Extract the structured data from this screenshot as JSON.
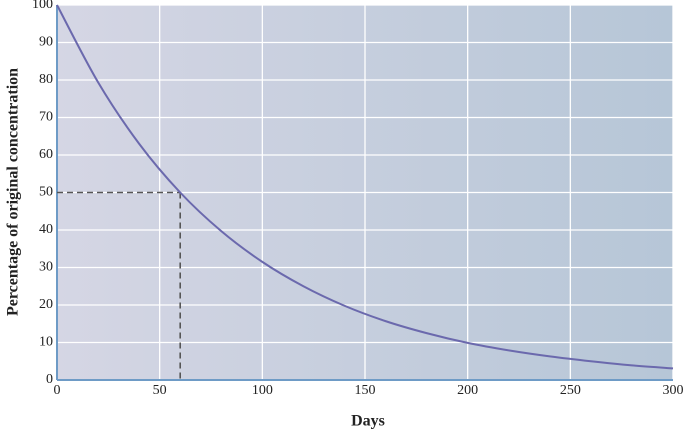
{
  "chart_data": {
    "type": "line",
    "xlabel": "Days",
    "ylabel": "Percentage of original concentration",
    "x": [
      0,
      20,
      40,
      60,
      80,
      100,
      120,
      140,
      160,
      180,
      200,
      220,
      240,
      260,
      280,
      300
    ],
    "values": [
      100,
      79.4,
      63,
      50,
      39.7,
      31.5,
      25,
      19.8,
      15.7,
      12.5,
      9.9,
      7.9,
      6.3,
      5,
      3.9,
      3.1
    ],
    "color": "#6b69ad",
    "reference": {
      "x": 60,
      "y": 50
    },
    "xlim": [
      0,
      300
    ],
    "xticks": [
      0,
      50,
      100,
      150,
      200,
      250,
      300
    ],
    "ylim": [
      0,
      100
    ],
    "yticks": [
      0,
      10,
      20,
      30,
      40,
      50,
      60,
      70,
      80,
      90,
      100
    ],
    "grid": true
  }
}
